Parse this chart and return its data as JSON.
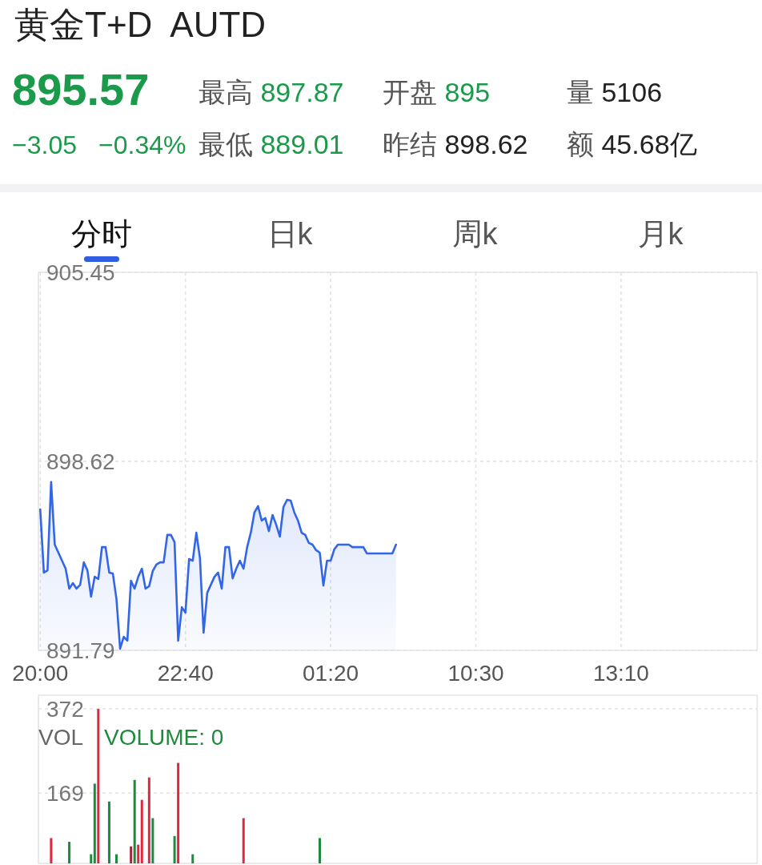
{
  "chart_data": [
    {
      "type": "other",
      "title": "黄金T+D  AUTD",
      "annotations": [
        "895.57",
        "最高 897.87",
        "开盘 895",
        "量 5106",
        "−3.05",
        "−0.34%",
        "最低 889.01",
        "昨结 898.62",
        "额 45.68亿",
        "分时",
        "日k",
        "周k",
        "月k"
      ]
    },
    {
      "type": "area",
      "ylim": [
        891.79,
        905.45
      ],
      "yticks": [
        891.79,
        898.62,
        905.45
      ],
      "grid": true,
      "categories": [
        "20:00",
        null,
        null,
        null,
        null,
        null,
        null,
        null,
        null,
        null,
        null,
        null,
        null,
        null,
        null,
        null,
        null,
        null,
        null,
        null,
        null,
        null,
        null,
        null,
        null,
        null,
        null,
        null,
        null,
        null,
        null,
        null,
        null,
        null,
        null,
        null,
        null,
        null,
        null,
        null,
        "22:40",
        null,
        null,
        null,
        null,
        null,
        null,
        null,
        null,
        null,
        null,
        null,
        null,
        null,
        null,
        null,
        null,
        null,
        null,
        null,
        null,
        null,
        null,
        null,
        null,
        null,
        null,
        null,
        null,
        null,
        null,
        null,
        null,
        null,
        null,
        null,
        null,
        null,
        null,
        null,
        "01:20",
        null,
        null,
        null,
        null,
        null,
        null,
        null,
        null,
        null,
        null,
        null,
        null,
        null,
        null,
        null,
        null,
        null,
        null,
        null,
        null,
        null,
        null,
        null,
        null,
        null,
        null,
        null,
        null,
        null,
        null,
        null,
        null,
        null,
        null,
        null,
        null,
        null,
        null,
        null,
        "10:30",
        null,
        null,
        null,
        null,
        null,
        null,
        null,
        null,
        null,
        null,
        null,
        null,
        null,
        null,
        null,
        null,
        null,
        null,
        null,
        null,
        null,
        null,
        null,
        null,
        null,
        null,
        null,
        null,
        null,
        null,
        null,
        null,
        null,
        null,
        null,
        null,
        null,
        null,
        null,
        "13:10",
        null,
        null,
        null,
        null,
        null,
        null,
        null,
        null,
        null,
        null,
        null,
        null,
        null,
        null,
        null,
        null,
        null,
        null,
        null,
        null,
        null,
        null,
        null,
        null,
        null,
        null,
        null,
        null,
        null,
        null,
        null,
        null,
        null,
        null,
        null,
        null,
        null
      ],
      "series": [
        {
          "color": "#3366e6",
          "values": [
            896.88,
            894.6,
            894.68,
            897.87,
            895.61,
            895.32,
            895.03,
            894.74,
            894.02,
            894.22,
            894.02,
            894.16,
            894.97,
            894.68,
            893.73,
            894.45,
            894.37,
            895.52,
            895.52,
            894.6,
            894.57,
            893.64,
            891.85,
            892.28,
            892.14,
            894.31,
            894.02,
            894.45,
            894.74,
            894.02,
            894.11,
            894.66,
            894.89,
            894.97,
            894.97,
            895.96,
            895.96,
            895.7,
            892.14,
            893.35,
            893.15,
            895.09,
            895.03,
            896.04,
            895.12,
            892.43,
            893.87,
            894.16,
            894.45,
            894.6,
            894.02,
            895.52,
            895.52,
            894.39,
            894.74,
            895.03,
            894.74,
            895.52,
            896.04,
            896.77,
            897.0,
            896.48,
            896.57,
            896.1,
            896.68,
            896.33,
            895.9,
            896.97,
            897.23,
            897.2,
            896.77,
            896.48,
            896.04,
            895.96,
            895.67,
            895.61,
            895.41,
            895.32,
            894.13,
            895.03,
            895.03,
            895.44,
            895.61,
            895.61,
            895.61,
            895.61,
            895.52,
            895.52,
            895.52,
            895.52,
            895.29,
            895.29,
            895.29,
            895.29,
            895.29,
            895.29,
            895.29,
            895.29,
            895.61,
            null,
            null,
            null,
            null,
            null,
            null,
            null,
            null,
            null,
            null,
            null,
            null,
            null,
            null,
            null,
            null,
            null,
            null,
            null,
            null,
            null,
            null,
            null,
            null,
            null,
            null,
            null,
            null,
            null,
            null,
            null,
            null,
            null,
            null,
            null,
            null,
            null,
            null,
            null,
            null,
            null,
            null,
            null,
            null,
            null,
            null,
            null,
            null,
            null,
            null,
            null,
            null,
            null,
            null,
            null,
            null,
            null,
            null,
            null,
            null,
            null,
            null,
            null,
            null,
            null,
            null,
            null,
            null,
            null,
            null,
            null,
            null,
            null,
            null,
            null,
            null,
            null,
            null,
            null,
            null,
            null,
            null,
            null,
            null,
            null,
            null,
            null,
            null,
            null,
            null,
            null,
            null,
            null,
            null,
            null,
            null,
            null,
            null,
            null
          ]
        }
      ]
    },
    {
      "type": "bar",
      "ylim": [
        0,
        405
      ],
      "yticks": [
        169,
        372
      ],
      "grid": "y",
      "annotations": [
        "VOL",
        "VOLUME: 0"
      ],
      "categories": [
        null,
        null,
        null,
        null,
        null,
        null,
        null,
        null,
        null,
        null,
        null,
        null,
        null,
        null,
        null,
        null,
        null,
        null,
        null,
        null,
        null,
        null,
        null,
        null,
        null,
        null,
        null,
        null,
        null,
        null,
        null,
        null,
        null,
        null,
        null,
        null,
        null,
        null,
        null,
        null,
        null,
        null,
        null,
        null,
        null,
        null,
        null,
        null,
        null,
        null,
        null,
        null,
        null,
        null,
        null,
        null,
        null,
        null,
        null,
        null,
        null,
        null,
        null,
        null,
        null,
        null,
        null,
        null,
        null,
        null,
        null,
        null,
        null,
        null,
        null,
        null,
        null,
        null,
        null,
        null,
        null,
        null,
        null,
        null,
        null,
        null,
        null,
        null,
        null,
        null,
        null,
        null,
        null,
        null,
        null,
        null,
        null,
        null,
        null,
        null,
        null,
        null,
        null,
        null,
        null,
        null,
        null,
        null,
        null,
        null,
        null,
        null,
        null,
        null,
        null,
        null,
        null,
        null,
        null,
        null,
        null,
        null,
        null,
        null,
        null,
        null,
        null,
        null,
        null,
        null,
        null,
        null,
        null,
        null,
        null,
        null,
        null,
        null,
        null,
        null,
        null,
        null,
        null,
        null,
        null,
        null,
        null,
        null,
        null,
        null,
        null,
        null,
        null,
        null,
        null,
        null,
        null,
        null,
        null,
        null,
        null,
        null,
        null,
        null,
        null,
        null,
        null,
        null,
        null,
        null,
        null,
        null,
        null,
        null,
        null,
        null,
        null,
        null,
        null,
        null,
        null,
        null,
        null,
        null,
        null,
        null,
        null,
        null,
        null,
        null,
        null,
        null,
        null,
        null,
        null,
        null,
        null,
        null
      ],
      "values": [
        null,
        null,
        null,
        61,
        null,
        null,
        null,
        null,
        52,
        null,
        null,
        null,
        null,
        null,
        22,
        192,
        372,
        null,
        null,
        149,
        null,
        22,
        null,
        null,
        null,
        41,
        201,
        45,
        153,
        null,
        207,
        109,
        null,
        null,
        null,
        null,
        null,
        66,
        242,
        null,
        null,
        null,
        22,
        null,
        null,
        null,
        null,
        null,
        null,
        null,
        null,
        null,
        null,
        null,
        null,
        null,
        109,
        null,
        null,
        null,
        null,
        null,
        null,
        null,
        null,
        null,
        null,
        null,
        null,
        null,
        null,
        null,
        null,
        null,
        null,
        null,
        null,
        61,
        null,
        null,
        null,
        null,
        null,
        null,
        null,
        null,
        null,
        null,
        null,
        null,
        null,
        null,
        null,
        null,
        null,
        null,
        null,
        null,
        null,
        null,
        null,
        null,
        null,
        null,
        null,
        null,
        null,
        null,
        null,
        null,
        null,
        null,
        null,
        null,
        null,
        null,
        null,
        null,
        null,
        null,
        null,
        null,
        null,
        null,
        null,
        null,
        null,
        null,
        null,
        null,
        null,
        null,
        null,
        null,
        null,
        null,
        null,
        null,
        null,
        null,
        null,
        null,
        null,
        null,
        null,
        null,
        null,
        null,
        null,
        null,
        null,
        null,
        null,
        null,
        null,
        null,
        null,
        null,
        null,
        null,
        null,
        null,
        null,
        null,
        null,
        null,
        null,
        null,
        null,
        null,
        null,
        null,
        null,
        null,
        null,
        null,
        null,
        null,
        null,
        null,
        null,
        null,
        null,
        null,
        null,
        null,
        null,
        null,
        null,
        null,
        null,
        null,
        null,
        null,
        null,
        null,
        null,
        null
      ],
      "colors": [
        null,
        null,
        null,
        "#e0283c",
        null,
        null,
        null,
        null,
        "#1e8a3c",
        null,
        null,
        null,
        null,
        null,
        "#1e8a3c",
        "#1e8a3c",
        "#e0283c",
        null,
        null,
        "#1e8a3c",
        null,
        "#1e8a3c",
        null,
        null,
        null,
        "#a0283c",
        "#1e8a3c",
        "#e0283c",
        "#e0283c",
        null,
        "#e0283c",
        "#1e8a3c",
        null,
        null,
        null,
        null,
        null,
        "#1e8a3c",
        "#e0283c",
        null,
        null,
        null,
        "#1e8a3c",
        null,
        null,
        null,
        null,
        null,
        null,
        null,
        null,
        null,
        null,
        null,
        null,
        null,
        "#e0283c",
        null,
        null,
        null,
        null,
        null,
        null,
        null,
        null,
        null,
        null,
        null,
        null,
        null,
        null,
        null,
        null,
        null,
        null,
        null,
        null,
        "#1e8a3c",
        null,
        null,
        null,
        null,
        null,
        null,
        null,
        null,
        null,
        null,
        null,
        null,
        null,
        null,
        null,
        null,
        null,
        null,
        null,
        null,
        null,
        null,
        null,
        null,
        null,
        null,
        null,
        null,
        null,
        null,
        null,
        null,
        null,
        null,
        null,
        null,
        null,
        null,
        null,
        null,
        null,
        null,
        null,
        null,
        null,
        null,
        null,
        null,
        null,
        null,
        null,
        null,
        null,
        null,
        null,
        null,
        null,
        null,
        null,
        null,
        null,
        null,
        null,
        null,
        null,
        null,
        null,
        null,
        null,
        null,
        null,
        null,
        null,
        null,
        null,
        null,
        null,
        null,
        null,
        null,
        null,
        null,
        null,
        null,
        null,
        null,
        null,
        null,
        null,
        null,
        null,
        null,
        null,
        null,
        null,
        null,
        null,
        null,
        null,
        null,
        null,
        null,
        null,
        null,
        null,
        null,
        null,
        null,
        null,
        null,
        null,
        null,
        null,
        null,
        null,
        null,
        null,
        null,
        null,
        null
      ]
    }
  ]
}
